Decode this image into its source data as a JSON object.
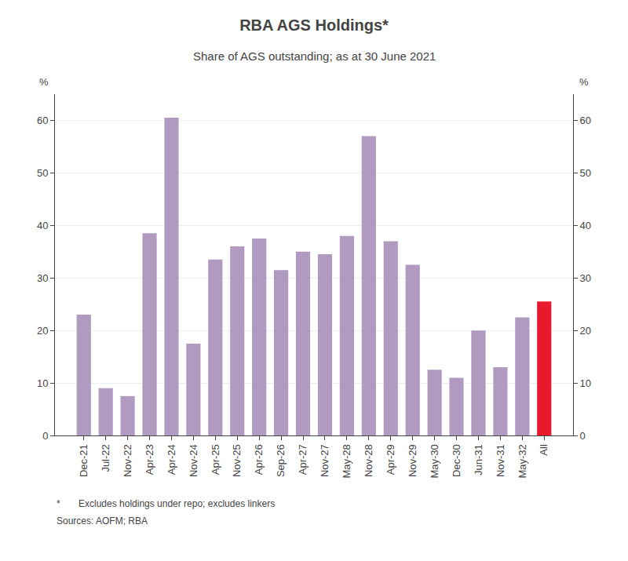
{
  "chart_data": {
    "type": "bar",
    "title": "RBA AGS Holdings*",
    "subtitle": "Share of AGS outstanding; as at 30 June 2021",
    "annotations": [
      "*       Excludes holdings under repo; excludes linkers",
      "Sources: AOFM; RBA"
    ],
    "ylabel": "%",
    "y2label": "%",
    "categories": [
      "Dec-21",
      "Jul-22",
      "Nov-22",
      "Apr-23",
      "Apr-24",
      "Nov-24",
      "Apr-25",
      "Nov-25",
      "Apr-26",
      "Sep-26",
      "Apr-27",
      "Nov-27",
      "May-28",
      "Nov-28",
      "Apr-29",
      "Nov-29",
      "May-30",
      "Dec-30",
      "Jun-31",
      "Nov-31",
      "May-32",
      "All"
    ],
    "values": [
      23.0,
      9.0,
      7.5,
      38.5,
      60.5,
      17.5,
      33.5,
      36.0,
      37.5,
      31.5,
      35.0,
      34.5,
      38.0,
      57.0,
      37.0,
      32.5,
      12.5,
      11.0,
      20.0,
      13.0,
      22.5,
      25.5
    ],
    "colors": [
      "#b09ac0",
      "#b09ac0",
      "#b09ac0",
      "#b09ac0",
      "#b09ac0",
      "#b09ac0",
      "#b09ac0",
      "#b09ac0",
      "#b09ac0",
      "#b09ac0",
      "#b09ac0",
      "#b09ac0",
      "#b09ac0",
      "#b09ac0",
      "#b09ac0",
      "#b09ac0",
      "#b09ac0",
      "#b09ac0",
      "#b09ac0",
      "#b09ac0",
      "#b09ac0",
      "#e8192c"
    ],
    "ylim": [
      0,
      65
    ],
    "yticks": [
      0,
      10,
      20,
      30,
      40,
      50,
      60
    ],
    "y2lim": [
      0,
      65
    ],
    "y2ticks": [
      0,
      10,
      20,
      30,
      40,
      50,
      60
    ],
    "grid": true
  }
}
